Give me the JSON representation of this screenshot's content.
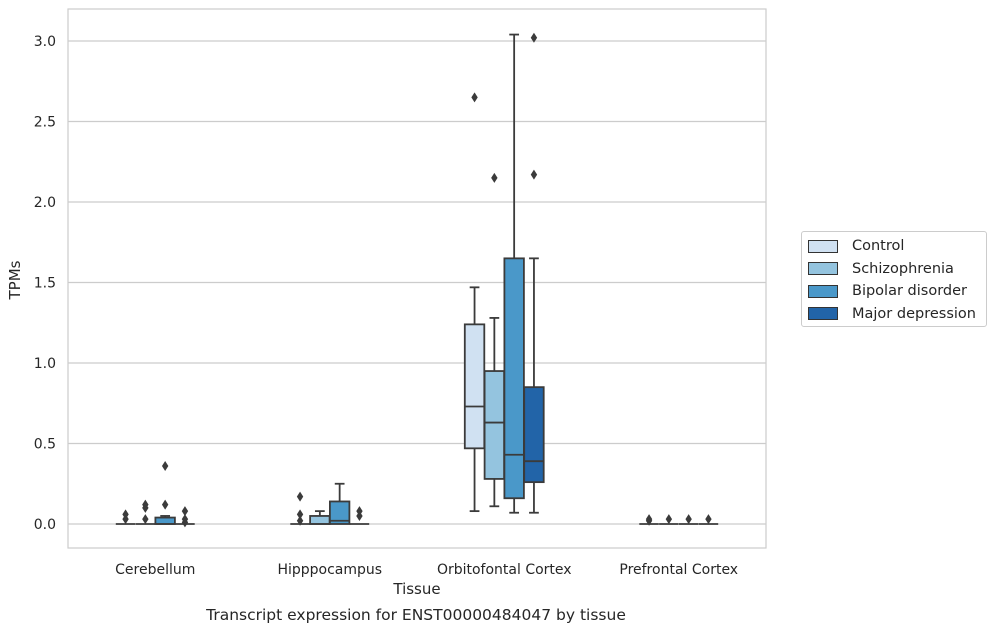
{
  "chart_data": {
    "type": "box",
    "title": "",
    "caption": "Transcript expression for ENST00000484047 by tissue",
    "xlabel": "Tissue",
    "ylabel": "TPMs",
    "ylim": [
      -0.15,
      3.2
    ],
    "yticks": [
      "0.0",
      "0.5",
      "1.0",
      "1.5",
      "2.0",
      "2.5",
      "3.0"
    ],
    "grid": true,
    "legend_position": "right",
    "categories": [
      "Cerebellum",
      "Hipppocampus",
      "Orbitofontal Cortex",
      "Prefrontal Cortex"
    ],
    "series": [
      {
        "name": "Control",
        "color": "#d0e1f2",
        "boxes": [
          {
            "q1": 0,
            "median": 0,
            "q3": 0,
            "whisker_low": 0,
            "whisker_high": 0,
            "outliers": [
              0.03,
              0.06
            ]
          },
          {
            "q1": 0,
            "median": 0,
            "q3": 0,
            "whisker_low": 0,
            "whisker_high": 0,
            "outliers": [
              0.02,
              0.06,
              0.17
            ]
          },
          {
            "q1": 0.47,
            "median": 0.73,
            "q3": 1.24,
            "whisker_low": 0.08,
            "whisker_high": 1.47,
            "outliers": [
              2.65
            ]
          },
          {
            "q1": 0,
            "median": 0,
            "q3": 0,
            "whisker_low": 0,
            "whisker_high": 0,
            "outliers": [
              0.02,
              0.03
            ]
          }
        ]
      },
      {
        "name": "Schizophrenia",
        "color": "#94c4df",
        "boxes": [
          {
            "q1": 0,
            "median": 0,
            "q3": 0,
            "whisker_low": 0,
            "whisker_high": 0,
            "outliers": [
              0.03,
              0.1,
              0.12
            ]
          },
          {
            "q1": 0,
            "median": 0,
            "q3": 0.05,
            "whisker_low": 0,
            "whisker_high": 0.08,
            "outliers": []
          },
          {
            "q1": 0.28,
            "median": 0.63,
            "q3": 0.95,
            "whisker_low": 0.11,
            "whisker_high": 1.28,
            "outliers": [
              2.15
            ]
          },
          {
            "q1": 0,
            "median": 0,
            "q3": 0,
            "whisker_low": 0,
            "whisker_high": 0,
            "outliers": [
              0.03
            ]
          }
        ]
      },
      {
        "name": "Bipolar disorder",
        "color": "#4a98c9",
        "boxes": [
          {
            "q1": 0,
            "median": 0,
            "q3": 0.04,
            "whisker_low": 0,
            "whisker_high": 0.05,
            "outliers": [
              0.12,
              0.36
            ]
          },
          {
            "q1": 0,
            "median": 0.02,
            "q3": 0.14,
            "whisker_low": 0,
            "whisker_high": 0.25,
            "outliers": []
          },
          {
            "q1": 0.16,
            "median": 0.43,
            "q3": 1.65,
            "whisker_low": 0.07,
            "whisker_high": 3.04,
            "outliers": []
          },
          {
            "q1": 0,
            "median": 0,
            "q3": 0,
            "whisker_low": 0,
            "whisker_high": 0,
            "outliers": [
              0.03
            ]
          }
        ]
      },
      {
        "name": "Major depression",
        "color": "#2264a8",
        "boxes": [
          {
            "q1": 0,
            "median": 0,
            "q3": 0,
            "whisker_low": 0,
            "whisker_high": 0,
            "outliers": [
              0.01,
              0.03,
              0.08
            ]
          },
          {
            "q1": 0,
            "median": 0,
            "q3": 0,
            "whisker_low": 0,
            "whisker_high": 0,
            "outliers": [
              0.05,
              0.08
            ]
          },
          {
            "q1": 0.26,
            "median": 0.39,
            "q3": 0.85,
            "whisker_low": 0.07,
            "whisker_high": 1.65,
            "outliers": [
              2.17,
              3.02
            ]
          },
          {
            "q1": 0,
            "median": 0,
            "q3": 0,
            "whisker_low": 0,
            "whisker_high": 0,
            "outliers": [
              0.03
            ]
          }
        ]
      }
    ]
  }
}
